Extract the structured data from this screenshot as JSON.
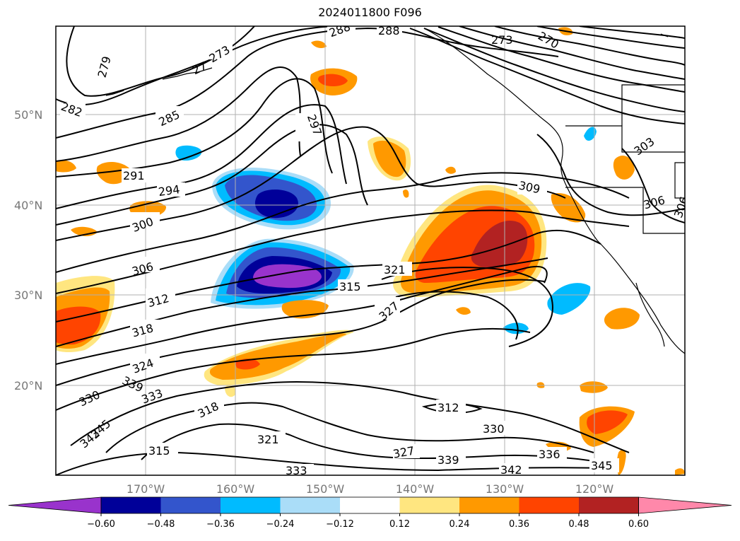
{
  "title": "2024011800 F096",
  "map": {
    "lat_labels": [
      "50°N",
      "40°N",
      "30°N",
      "20°N"
    ],
    "lon_labels": [
      "170°W",
      "160°W",
      "150°W",
      "140°W",
      "130°W",
      "120°W"
    ],
    "contour_labels": [
      "279",
      "282",
      "285",
      "273",
      "27",
      "288",
      "288",
      "273",
      "270",
      "297",
      "291",
      "294",
      "300",
      "306",
      "312",
      "318",
      "324",
      "330",
      "339",
      "333",
      "342",
      "345",
      "315",
      "321",
      "318",
      "321",
      "315",
      "327",
      "309",
      "303",
      "306",
      "306",
      "312",
      "330",
      "327",
      "336",
      "339",
      "342",
      "333",
      "345"
    ]
  },
  "colorbar": {
    "ticks": [
      "−0.60",
      "−0.48",
      "−0.36",
      "−0.24",
      "−0.12",
      "0.12",
      "0.24",
      "0.36",
      "0.48",
      "0.60"
    ],
    "colors": [
      "#9933cc",
      "#000099",
      "#3355cc",
      "#00bbff",
      "#aaddf8",
      "#ffffff",
      "#ffe680",
      "#ff9900",
      "#ff4400",
      "#b22222",
      "#ff88aa"
    ]
  }
}
